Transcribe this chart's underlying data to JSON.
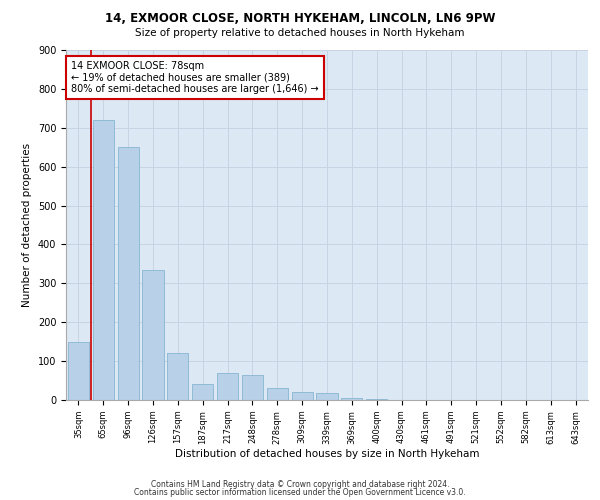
{
  "title1": "14, EXMOOR CLOSE, NORTH HYKEHAM, LINCOLN, LN6 9PW",
  "title2": "Size of property relative to detached houses in North Hykeham",
  "xlabel": "Distribution of detached houses by size in North Hykeham",
  "ylabel": "Number of detached properties",
  "categories": [
    "35sqm",
    "65sqm",
    "96sqm",
    "126sqm",
    "157sqm",
    "187sqm",
    "217sqm",
    "248sqm",
    "278sqm",
    "309sqm",
    "339sqm",
    "369sqm",
    "400sqm",
    "430sqm",
    "461sqm",
    "491sqm",
    "521sqm",
    "552sqm",
    "582sqm",
    "613sqm",
    "643sqm"
  ],
  "values": [
    150,
    720,
    650,
    335,
    120,
    40,
    70,
    65,
    30,
    20,
    18,
    5,
    3,
    0,
    0,
    0,
    0,
    0,
    0,
    0,
    0
  ],
  "bar_color": "#b8d0e8",
  "bar_edge_color": "#7aaecc",
  "grid_color": "#c8d4e4",
  "background_color": "#dce8f4",
  "annotation_line1": "14 EXMOOR CLOSE: 78sqm",
  "annotation_line2": "← 19% of detached houses are smaller (389)",
  "annotation_line3": "80% of semi-detached houses are larger (1,646) →",
  "annotation_box_color": "#ffffff",
  "annotation_box_edge": "#cc0000",
  "vline_x": 0.5,
  "vline_color": "#cc0000",
  "ylim": [
    0,
    900
  ],
  "yticks": [
    0,
    100,
    200,
    300,
    400,
    500,
    600,
    700,
    800,
    900
  ],
  "footer1": "Contains HM Land Registry data © Crown copyright and database right 2024.",
  "footer2": "Contains public sector information licensed under the Open Government Licence v3.0."
}
